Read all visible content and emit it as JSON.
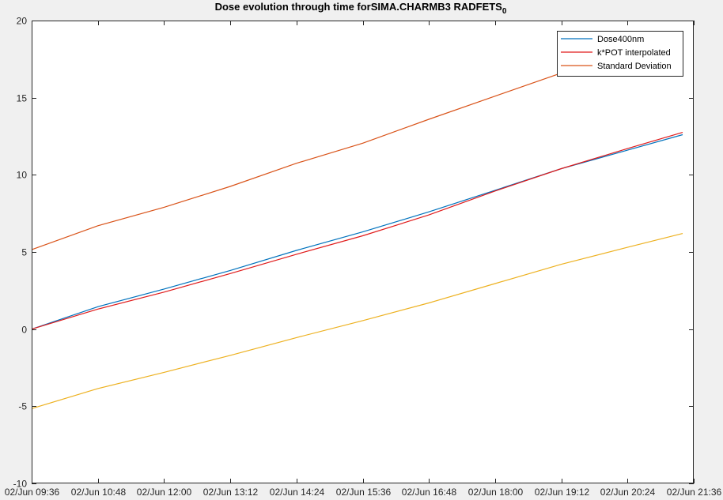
{
  "chart_data": {
    "type": "line",
    "title": "Dose evolution through time forSIMA.CHARMB3 RADFETS",
    "title_subscript": "0",
    "xlabel": "",
    "ylabel": "",
    "x_ticks": [
      "02/Jun 09:36",
      "02/Jun 10:48",
      "02/Jun 12:00",
      "02/Jun 13:12",
      "02/Jun 14:24",
      "02/Jun 15:36",
      "02/Jun 16:48",
      "02/Jun 18:00",
      "02/Jun 19:12",
      "02/Jun 20:24",
      "02/Jun 21:36"
    ],
    "xlim": [
      "02/Jun 09:36",
      "02/Jun 21:36"
    ],
    "y_ticks": [
      -10,
      -5,
      0,
      5,
      10,
      15,
      20
    ],
    "ylim": [
      -10,
      20
    ],
    "grid": false,
    "legend_position": "top-right",
    "series": [
      {
        "name": "Dose400nm",
        "color": "#0072bd",
        "x": [
          "02/Jun 09:36",
          "02/Jun 10:48",
          "02/Jun 12:00",
          "02/Jun 13:12",
          "02/Jun 14:24",
          "02/Jun 15:36",
          "02/Jun 16:48",
          "02/Jun 18:00",
          "02/Jun 19:12",
          "02/Jun 20:24",
          "02/Jun 21:24"
        ],
        "values": [
          0.0,
          1.45,
          2.6,
          3.8,
          5.1,
          6.3,
          7.6,
          9.0,
          10.4,
          11.6,
          12.6
        ]
      },
      {
        "name": "k*POT interpolated",
        "color": "#e01a1a",
        "x": [
          "02/Jun 09:36",
          "02/Jun 10:48",
          "02/Jun 12:00",
          "02/Jun 13:12",
          "02/Jun 14:24",
          "02/Jun 15:36",
          "02/Jun 16:48",
          "02/Jun 18:00",
          "02/Jun 19:12",
          "02/Jun 20:24",
          "02/Jun 21:24"
        ],
        "values": [
          0.0,
          1.3,
          2.4,
          3.6,
          4.85,
          6.05,
          7.4,
          8.95,
          10.4,
          11.7,
          12.75
        ]
      },
      {
        "name": "Standard Deviation",
        "color": "#d95319",
        "x": [
          "02/Jun 09:36",
          "02/Jun 10:48",
          "02/Jun 12:00",
          "02/Jun 13:12",
          "02/Jun 14:24",
          "02/Jun 15:36",
          "02/Jun 16:48",
          "02/Jun 18:00",
          "02/Jun 19:12",
          "02/Jun 20:24",
          "02/Jun 21:24"
        ],
        "values": [
          5.15,
          6.7,
          7.9,
          9.25,
          10.75,
          12.05,
          13.6,
          15.1,
          16.6,
          18.0,
          19.0
        ]
      },
      {
        "color": "#edb120",
        "x": [
          "02/Jun 09:36",
          "02/Jun 10:48",
          "02/Jun 12:00",
          "02/Jun 13:12",
          "02/Jun 14:24",
          "02/Jun 15:36",
          "02/Jun 16:48",
          "02/Jun 18:00",
          "02/Jun 19:12",
          "02/Jun 20:24",
          "02/Jun 21:24"
        ],
        "values": [
          -5.15,
          -3.85,
          -2.8,
          -1.7,
          -0.55,
          0.55,
          1.7,
          2.95,
          4.2,
          5.3,
          6.2
        ]
      }
    ]
  }
}
